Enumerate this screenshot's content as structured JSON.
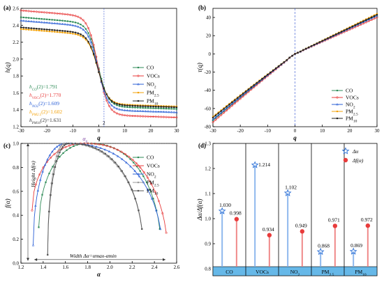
{
  "chart_data": [
    {
      "id": "a",
      "type": "line",
      "panel_label": "(a)",
      "xlabel": "q",
      "ylabel": "h(q)",
      "xlim": [
        -30,
        30
      ],
      "ylim": [
        1.2,
        2.6
      ],
      "xticks": [
        "-30",
        "-20",
        "-10",
        "0",
        "10",
        "20",
        "30"
      ],
      "yticks": [
        "1.2",
        "1.4",
        "1.6",
        "1.8",
        "2.0",
        "2.2",
        "2.4",
        "2.6"
      ],
      "vline": {
        "x": 2,
        "label": "2"
      },
      "legend_position": "right",
      "annotations": [
        {
          "text": "hCO(2)=1.791",
          "color": "#2e8b57"
        },
        {
          "text": "hVOCs(2)=1.770",
          "color": "#e83b3b"
        },
        {
          "text": "hNO2(2)=1.609",
          "color": "#2a5fd6"
        },
        {
          "text": "hPM2.5(2)=1.602",
          "color": "#f2a007"
        },
        {
          "text": "hPM10(2)=1.631",
          "color": "#333333"
        }
      ],
      "series": [
        {
          "name": "CO",
          "color": "#2e8b57",
          "h_neg": 2.42,
          "h_pos": 1.44
        },
        {
          "name": "VOCs",
          "color": "#e83b3b",
          "h_neg": 2.5,
          "h_pos": 1.34
        },
        {
          "name": "NO2",
          "color": "#2a5fd6",
          "h_neg": 2.38,
          "h_pos": 1.4
        },
        {
          "name": "PM2.5",
          "color": "#f2a007",
          "h_neg": 2.28,
          "h_pos": 1.47
        },
        {
          "name": "PM10",
          "color": "#222222",
          "h_neg": 2.3,
          "h_pos": 1.46
        }
      ]
    },
    {
      "id": "b",
      "type": "line",
      "panel_label": "(b)",
      "xlabel": "q",
      "ylabel": "τ(q)",
      "xlim": [
        -30,
        30
      ],
      "ylim": [
        -80,
        50
      ],
      "xticks": [
        "-30",
        "-20",
        "-10",
        "0",
        "10",
        "20",
        "30"
      ],
      "yticks": [
        "-80",
        "-60",
        "-40",
        "-20",
        "0",
        "20",
        "40"
      ],
      "vline": {
        "x": 0
      },
      "legend_position": "bottom-right",
      "series": [
        {
          "name": "CO",
          "color": "#2e8b57",
          "tau_start": -73,
          "tau_end": 42
        },
        {
          "name": "VOCs",
          "color": "#e83b3b",
          "tau_start": -75,
          "tau_end": 40
        },
        {
          "name": "NO2",
          "color": "#2a5fd6",
          "tau_start": -72,
          "tau_end": 42
        },
        {
          "name": "PM2.5",
          "color": "#f2a007",
          "tau_start": -69,
          "tau_end": 44
        },
        {
          "name": "PM10",
          "color": "#222222",
          "tau_start": -70,
          "tau_end": 43
        }
      ]
    },
    {
      "id": "c",
      "type": "line",
      "panel_label": "(c)",
      "xlabel": "α",
      "ylabel": "f(α)",
      "xlim": [
        1.2,
        2.6
      ],
      "ylim": [
        0,
        1.0
      ],
      "xticks": [
        "1.2",
        "1.4",
        "1.6",
        "1.8",
        "2.0",
        "2.2",
        "2.4",
        "2.6"
      ],
      "yticks": [
        "0.0",
        "0.2",
        "0.4",
        "0.6",
        "0.8",
        "1.0"
      ],
      "peak_label": "α0",
      "height_label": "Height Δf(α)",
      "width_label": "Width Δα=αmax-αmin",
      "legend_position": "top-right",
      "series": [
        {
          "name": "CO",
          "color": "#2e8b57",
          "a_min": 1.36,
          "a0": 1.8,
          "a_max": 2.46,
          "f_left": 0.3,
          "f_right": 0.1
        },
        {
          "name": "VOCs",
          "color": "#e83b3b",
          "a_min": 1.3,
          "a0": 1.77,
          "a_max": 2.52,
          "f_left": 0.44,
          "f_right": 0.06
        },
        {
          "name": "NO2",
          "color": "#2a5fd6",
          "a_min": 1.31,
          "a0": 1.61,
          "a_max": 2.47,
          "f_left": 0.15,
          "f_right": 0.1
        },
        {
          "name": "PM2.5",
          "color": "#999999",
          "a_min": 1.44,
          "a0": 1.6,
          "a_max": 2.3,
          "f_left": 0.07,
          "f_right": 0.1
        },
        {
          "name": "PM10",
          "color": "#555555",
          "a_min": 1.44,
          "a0": 1.63,
          "a_max": 2.3,
          "f_left": 0.07,
          "f_right": 0.1
        }
      ]
    },
    {
      "id": "d",
      "type": "bar",
      "panel_label": "(d)",
      "ylabel": "Δα/Δf(α)",
      "ylim": [
        0.8,
        1.3
      ],
      "yticks": [
        "0.8",
        "0.9",
        "1.0",
        "1.1",
        "1.2",
        "1.3"
      ],
      "categories": [
        "CO",
        "VOCs",
        "NO2",
        "PM2.5",
        "PM10"
      ],
      "legend_position": "top-right",
      "series": [
        {
          "name": "Δα",
          "color": "#2a6fd6",
          "marker": "star",
          "values": [
            1.03,
            1.214,
            1.102,
            0.868,
            0.869
          ],
          "labels": [
            "1.030",
            "1.214",
            "1.102",
            "0.868",
            "0.869"
          ]
        },
        {
          "name": "Δf(α)",
          "color": "#e83b3b",
          "marker": "circle",
          "values": [
            0.998,
            0.934,
            0.949,
            0.971,
            0.972
          ],
          "labels": [
            "0.998",
            "0.934",
            "0.949",
            "0.971",
            "0.972"
          ]
        }
      ]
    }
  ]
}
